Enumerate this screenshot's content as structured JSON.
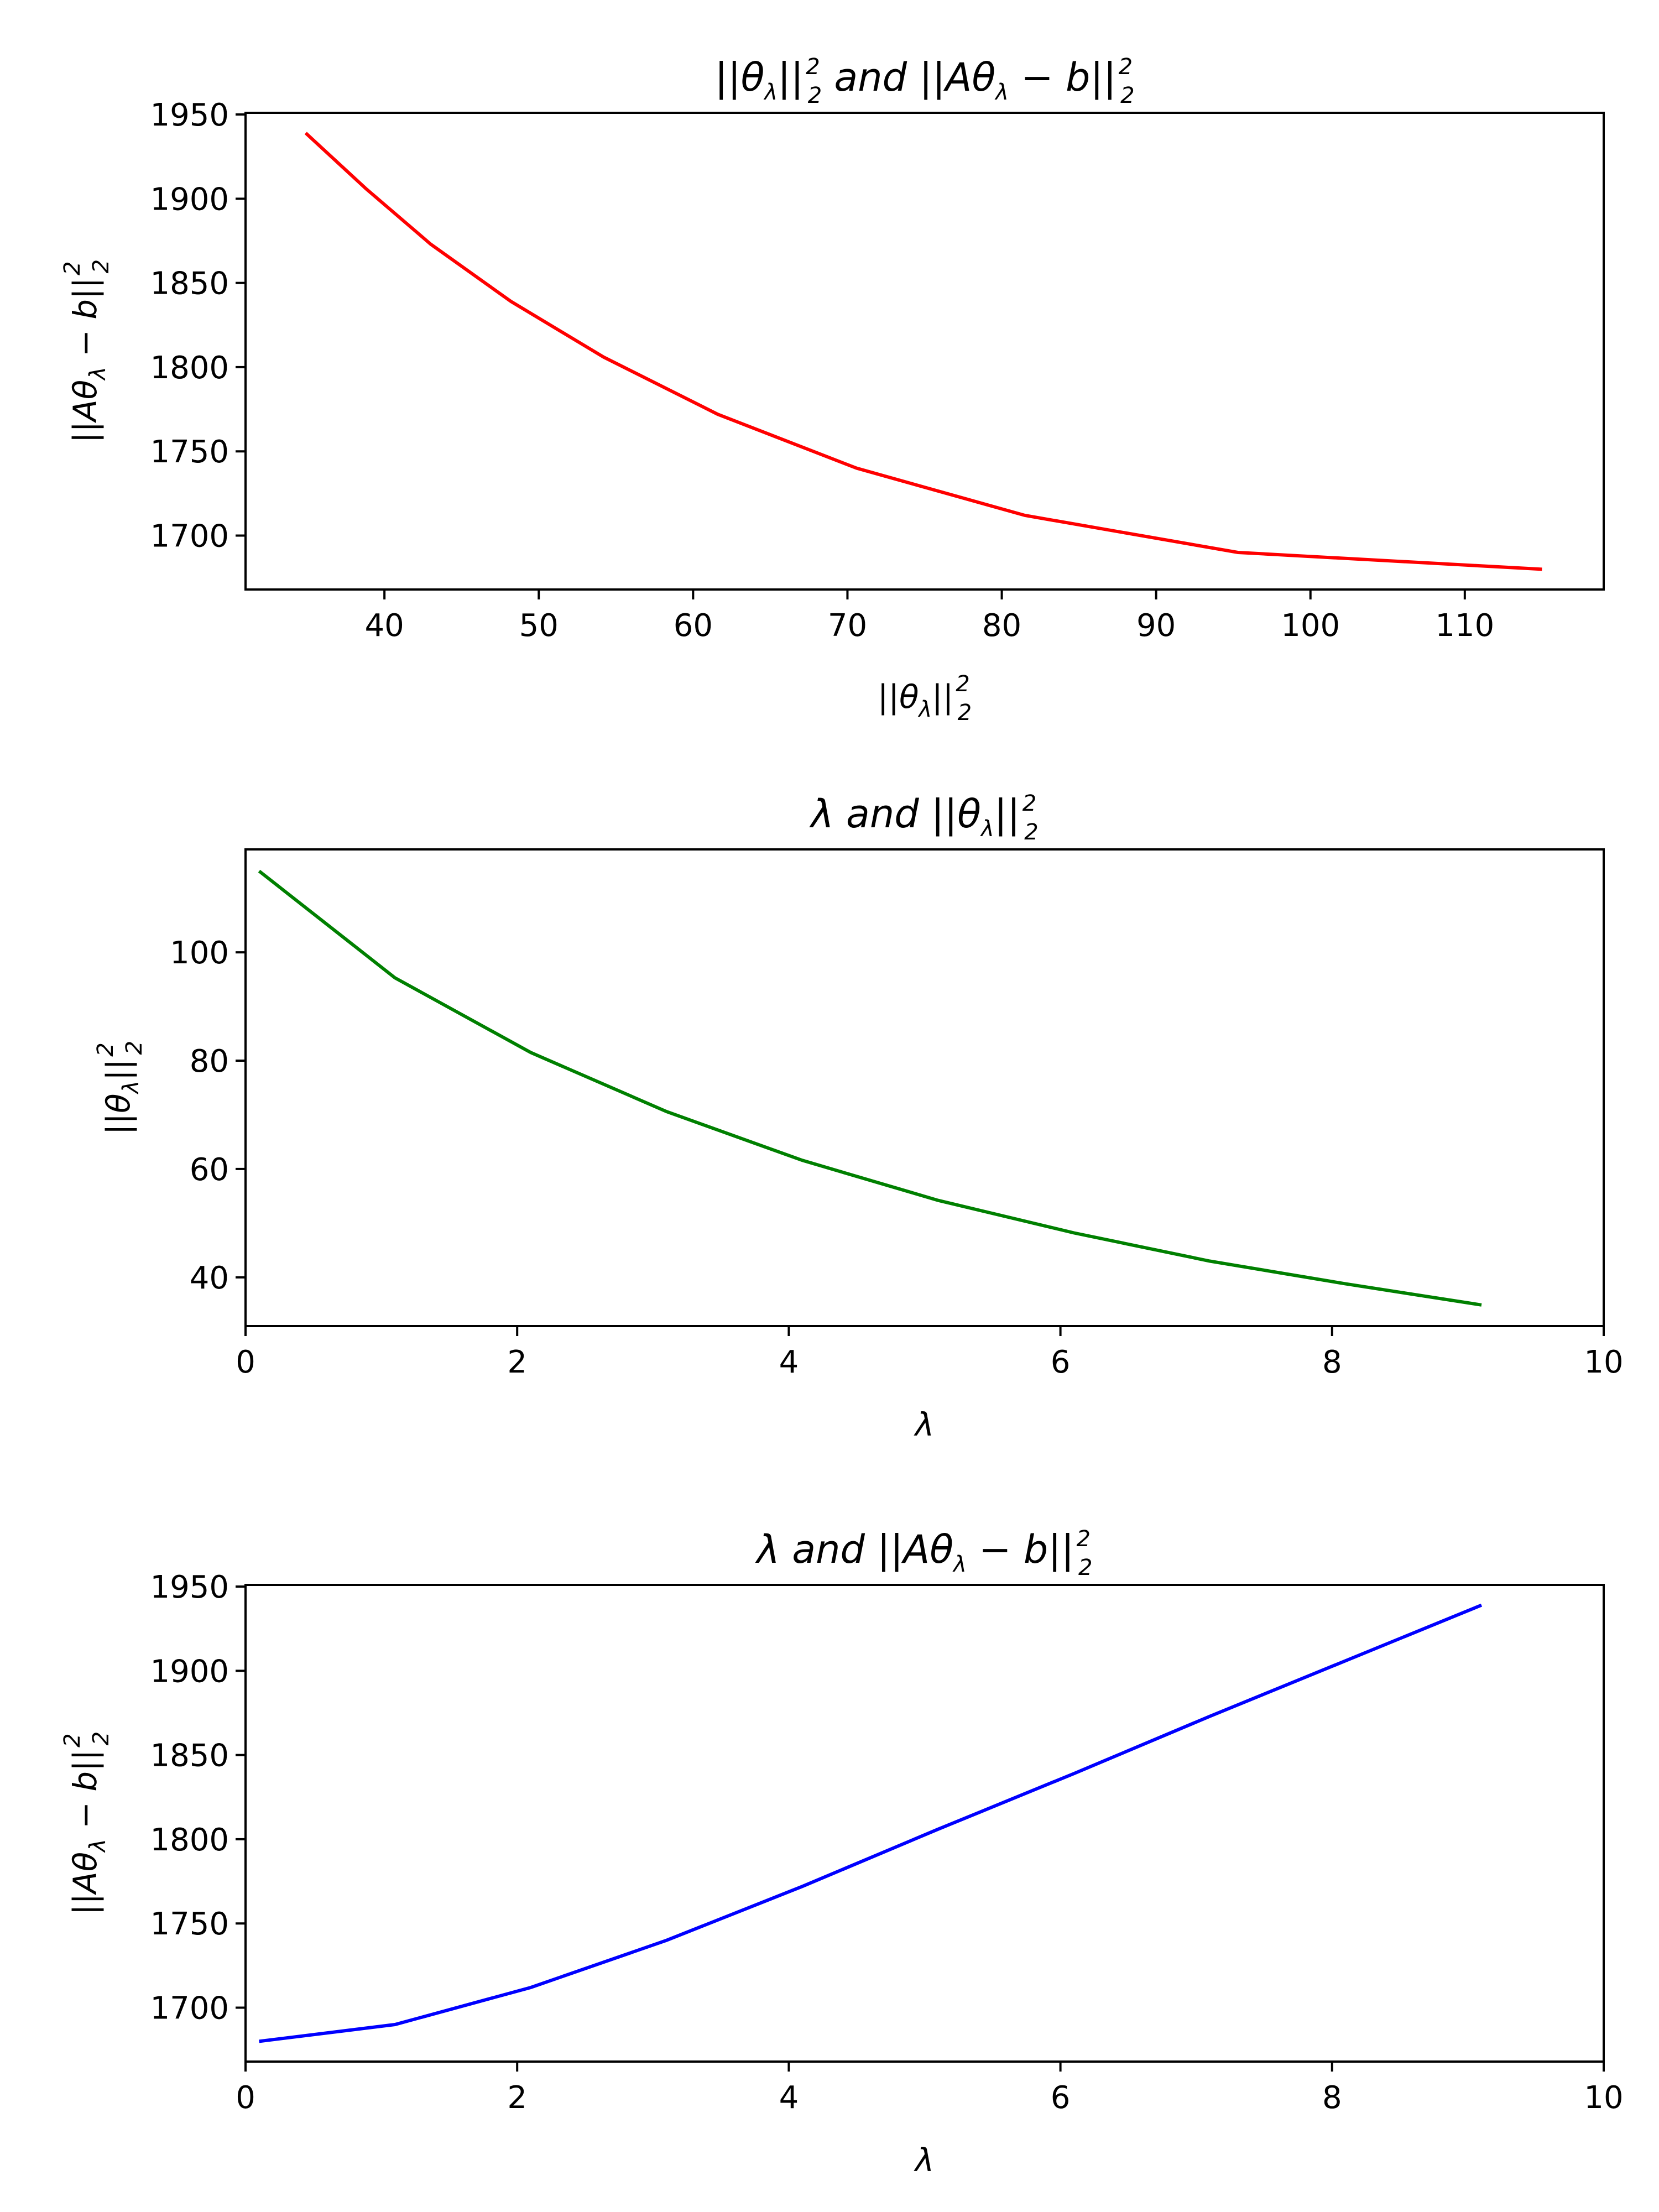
{
  "chart_data": [
    {
      "type": "line",
      "title": "||θλ||²₂ and ||Aθλ − b||²₂",
      "xlabel": "||θλ||²₂",
      "ylabel": "||Aθλ − b||²₂",
      "xlim": [
        31,
        119
      ],
      "ylim": [
        1668,
        1951
      ],
      "xticks": [
        40,
        50,
        60,
        70,
        80,
        90,
        100,
        110
      ],
      "yticks": [
        1700,
        1750,
        1800,
        1850,
        1900,
        1950
      ],
      "xtick_labels": [
        "40",
        "50",
        "60",
        "70",
        "80",
        "90",
        "100",
        "110"
      ],
      "ytick_labels": [
        "1700",
        "1750",
        "1800",
        "1850",
        "1900",
        "1950"
      ],
      "grid": false,
      "color": "#ff0000",
      "x": [
        34.9,
        38.8,
        43.0,
        48.2,
        54.2,
        61.6,
        70.6,
        81.5,
        95.3,
        115.0
      ],
      "y": [
        1939,
        1906,
        1873,
        1839,
        1806,
        1772,
        1740,
        1712,
        1690,
        1680
      ]
    },
    {
      "type": "line",
      "title": "λ and ||θλ||²₂",
      "xlabel": "λ",
      "ylabel": "||θλ||²₂",
      "xlim": [
        0,
        10
      ],
      "ylim": [
        31,
        119
      ],
      "xticks": [
        0,
        2,
        4,
        6,
        8,
        10
      ],
      "yticks": [
        40,
        60,
        80,
        100
      ],
      "xtick_labels": [
        "0",
        "2",
        "4",
        "6",
        "8",
        "10"
      ],
      "ytick_labels": [
        "40",
        "60",
        "80",
        "100"
      ],
      "grid": false,
      "color": "#008000",
      "x": [
        0.1,
        1.1,
        2.1,
        3.1,
        4.1,
        5.1,
        6.1,
        7.1,
        8.1,
        9.1
      ],
      "y": [
        115.0,
        95.3,
        81.5,
        70.6,
        61.6,
        54.2,
        48.2,
        43.0,
        38.8,
        34.9
      ]
    },
    {
      "type": "line",
      "title": "λ and ||Aθλ − b||²₂",
      "xlabel": "λ",
      "ylabel": "||Aθλ − b||²₂",
      "xlim": [
        0,
        10
      ],
      "ylim": [
        1668,
        1951
      ],
      "xticks": [
        0,
        2,
        4,
        6,
        8,
        10
      ],
      "yticks": [
        1700,
        1750,
        1800,
        1850,
        1900,
        1950
      ],
      "xtick_labels": [
        "0",
        "2",
        "4",
        "6",
        "8",
        "10"
      ],
      "ytick_labels": [
        "1700",
        "1750",
        "1800",
        "1850",
        "1900",
        "1950"
      ],
      "grid": false,
      "color": "#0000ff",
      "x": [
        0.1,
        1.1,
        2.1,
        3.1,
        4.1,
        5.1,
        6.1,
        7.1,
        8.1,
        9.1
      ],
      "y": [
        1680,
        1690,
        1712,
        1740,
        1772,
        1806,
        1839,
        1873,
        1906,
        1939
      ]
    }
  ]
}
